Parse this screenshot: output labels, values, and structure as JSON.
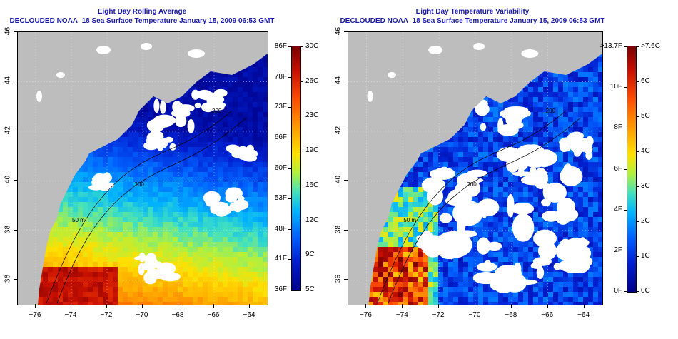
{
  "maps": [
    {
      "title_line1": "Eight Day Rolling Average",
      "title_line2": "DECLOUDED NOAA–18 Sea Surface Temperature January 15, 2009 06:53 GMT",
      "colorbar_f": [
        "86F",
        "78F",
        "73F",
        "66F",
        "60F",
        "53F",
        "48F",
        "41F",
        "36F"
      ],
      "colorbar_c": [
        "30C",
        "26C",
        "23C",
        "19C",
        "16C",
        "12C",
        "9C",
        "5C"
      ],
      "contour_labels": [
        "200",
        "50 m",
        "200"
      ],
      "field": "sst"
    },
    {
      "title_line1": "Eight Day Temperature Variability",
      "title_line2": "DECLOUDED NOAA–18 Sea Surface Temperature January 15, 2009 06:53 GMT",
      "colorbar_f": [
        ">13.7F",
        "10F",
        "8F",
        "6F",
        "4F",
        "2F",
        "0F"
      ],
      "colorbar_c": [
        ">7.6C",
        "6C",
        "5C",
        "4C",
        "3C",
        "2C",
        "1C",
        "0C"
      ],
      "contour_labels": [
        "200",
        "50 m",
        "200"
      ],
      "field": "variability"
    }
  ],
  "lon_ticks": [
    "−76",
    "−74",
    "−72",
    "−70",
    "−68",
    "−66",
    "−64"
  ],
  "lat_ticks": [
    "36",
    "38",
    "40",
    "42",
    "44",
    "46"
  ],
  "colors": {
    "title": "#1a1aa6",
    "land": "#bdbdbd",
    "cloud": "#ffffff",
    "frame": "#000000"
  }
}
